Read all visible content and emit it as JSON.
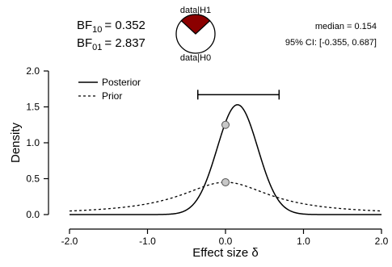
{
  "bf10": {
    "label_main": "BF",
    "label_sub": "10",
    "value": "= 0.352"
  },
  "bf01": {
    "label_main": "BF",
    "label_sub": "01",
    "value": "= 2.837"
  },
  "pie": {
    "top_label": "data|H1",
    "bottom_label": "data|H0",
    "h1_fraction": 0.2625,
    "h1_color": "#8b0000",
    "h0_color": "#ffffff"
  },
  "summary": {
    "median": "median = 0.154",
    "ci": "95% CI: [-0.355, 0.687]"
  },
  "legend": {
    "posterior": "Posterior",
    "prior": "Prior"
  },
  "chart_data": {
    "type": "line",
    "xlabel": "Effect size δ",
    "ylabel": "Density",
    "xlim": [
      -2.0,
      2.0
    ],
    "ylim": [
      0.0,
      2.0
    ],
    "x_ticks": [
      "-2.0",
      "-1.0",
      "0.0",
      "1.0",
      "2.0"
    ],
    "y_ticks": [
      "0.0",
      "0.5",
      "1.0",
      "1.5",
      "2.0"
    ],
    "series": [
      {
        "name": "Posterior",
        "style": "solid",
        "peak_x": 0.154,
        "peak_y": 1.53,
        "sd": 0.26
      },
      {
        "name": "Prior",
        "style": "dashed",
        "distribution": "cauchy",
        "scale": 0.707
      }
    ],
    "points": [
      {
        "series": "Posterior",
        "x": 0.0,
        "y": 1.25
      },
      {
        "series": "Prior",
        "x": 0.0,
        "y": 0.45
      }
    ],
    "ci_interval": [
      -0.355,
      0.687
    ],
    "ci_y": 1.67
  }
}
